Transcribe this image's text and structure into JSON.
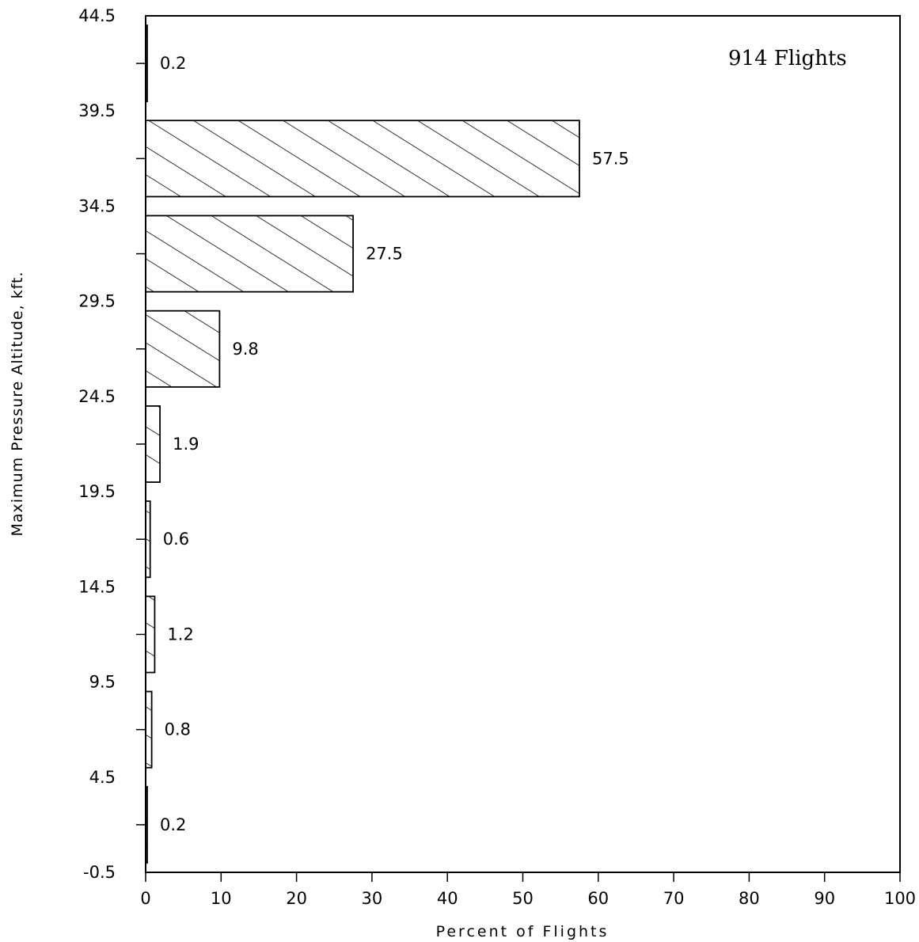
{
  "chart_data": {
    "type": "bar",
    "orientation": "horizontal",
    "annotation": "914 Flights",
    "xlabel": "Percent of Flights",
    "ylabel": "Maximum Pressure Altitude, kft.",
    "xlim": [
      0,
      100
    ],
    "ylim": [
      -0.5,
      44.5
    ],
    "x_ticks": [
      "0",
      "10",
      "20",
      "30",
      "40",
      "50",
      "60",
      "70",
      "80",
      "90",
      "100"
    ],
    "y_ticks": [
      "-0.5",
      "4.5",
      "9.5",
      "14.5",
      "19.5",
      "24.5",
      "29.5",
      "34.5",
      "39.5",
      "44.5"
    ],
    "bins": [
      {
        "from": -0.5,
        "to": 4.5,
        "value": 0.2,
        "label": "0.2"
      },
      {
        "from": 4.5,
        "to": 9.5,
        "value": 0.8,
        "label": "0.8"
      },
      {
        "from": 9.5,
        "to": 14.5,
        "value": 1.2,
        "label": "1.2"
      },
      {
        "from": 14.5,
        "to": 19.5,
        "value": 0.6,
        "label": "0.6"
      },
      {
        "from": 19.5,
        "to": 24.5,
        "value": 1.9,
        "label": "1.9"
      },
      {
        "from": 24.5,
        "to": 29.5,
        "value": 9.8,
        "label": "9.8"
      },
      {
        "from": 29.5,
        "to": 34.5,
        "value": 27.5,
        "label": "27.5"
      },
      {
        "from": 34.5,
        "to": 39.5,
        "value": 57.5,
        "label": "57.5"
      },
      {
        "from": 39.5,
        "to": 44.5,
        "value": 0.2,
        "label": "0.2"
      }
    ],
    "grid": false,
    "bar_fill": "diagonal-hatch",
    "colors": {
      "ink": "#000000",
      "background": "#ffffff"
    }
  }
}
